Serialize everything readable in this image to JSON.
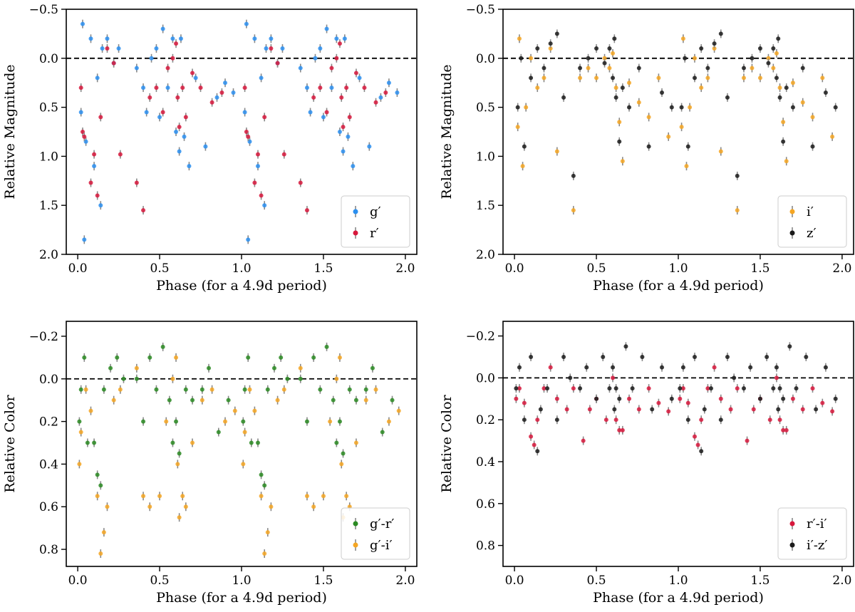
{
  "chart_data": [
    {
      "type": "scatter",
      "panel": "top-left",
      "xlabel": "Phase (for a 4.9d period)",
      "ylabel": "Relative Magnitude",
      "xlim": [
        -0.07,
        2.07
      ],
      "ylim": [
        2.0,
        -0.5
      ],
      "y_inverted": true,
      "xticks": [
        0.0,
        0.5,
        1.0,
        1.5,
        2.0
      ],
      "xtick_labels": [
        "0.0",
        "0.5",
        "1.0",
        "1.5",
        "2.0"
      ],
      "yticks": [
        -0.5,
        0.0,
        0.5,
        1.0,
        1.5,
        2.0
      ],
      "ytick_labels": [
        "−0.5",
        "0.0",
        "0.5",
        "1.0",
        "1.5",
        "2.0"
      ],
      "reference_line": 0.0,
      "legend_position": "bottom-right",
      "series": [
        {
          "name": "g′",
          "color": "#2b8ff0",
          "x": [
            0.02,
            0.03,
            0.04,
            0.05,
            0.08,
            0.1,
            0.12,
            0.14,
            0.15,
            0.18,
            0.22,
            0.25,
            0.36,
            0.4,
            0.42,
            0.45,
            0.48,
            0.5,
            0.52,
            0.55,
            0.58,
            0.6,
            0.62,
            0.63,
            0.65,
            0.68,
            0.72,
            0.78,
            0.85,
            0.9,
            0.95,
            1.02,
            1.03,
            1.04,
            1.05,
            1.08,
            1.1,
            1.12,
            1.14,
            1.15,
            1.18,
            1.22,
            1.25,
            1.36,
            1.4,
            1.42,
            1.45,
            1.48,
            1.5,
            1.52,
            1.55,
            1.58,
            1.6,
            1.62,
            1.63,
            1.65,
            1.68,
            1.72,
            1.78,
            1.85,
            1.9,
            1.95
          ],
          "y": [
            0.55,
            -0.35,
            1.85,
            0.85,
            -0.2,
            1.1,
            0.2,
            1.5,
            -0.1,
            -0.2,
            0.05,
            -0.1,
            0.1,
            0.3,
            0.55,
            0.0,
            -0.1,
            0.6,
            -0.3,
            0.3,
            -0.2,
            0.75,
            0.95,
            -0.2,
            0.8,
            1.1,
            0.2,
            0.9,
            0.4,
            0.25,
            0.35,
            0.55,
            -0.35,
            1.85,
            0.85,
            -0.2,
            1.1,
            0.2,
            1.5,
            -0.1,
            -0.2,
            0.05,
            -0.1,
            0.1,
            0.3,
            0.55,
            0.0,
            -0.1,
            0.6,
            -0.3,
            0.3,
            -0.2,
            0.75,
            0.95,
            -0.2,
            0.8,
            1.1,
            0.2,
            0.9,
            0.4,
            0.25,
            0.35
          ]
        },
        {
          "name": "r′",
          "color": "#d7183c",
          "x": [
            0.02,
            0.03,
            0.04,
            0.08,
            0.1,
            0.12,
            0.14,
            0.18,
            0.22,
            0.26,
            0.36,
            0.4,
            0.44,
            0.48,
            0.52,
            0.55,
            0.58,
            0.6,
            0.61,
            0.62,
            0.64,
            0.66,
            0.7,
            0.75,
            0.82,
            0.88,
            1.02,
            1.03,
            1.04,
            1.08,
            1.1,
            1.12,
            1.14,
            1.18,
            1.22,
            1.26,
            1.36,
            1.4,
            1.44,
            1.48,
            1.52,
            1.55,
            1.58,
            1.6,
            1.61,
            1.62,
            1.64,
            1.66,
            1.7,
            1.75,
            1.82,
            1.88
          ],
          "y": [
            0.3,
            0.75,
            0.8,
            1.27,
            0.98,
            1.4,
            0.6,
            -0.1,
            0.05,
            0.98,
            1.27,
            1.55,
            0.4,
            0.3,
            0.55,
            0.1,
            0.0,
            -0.15,
            0.4,
            0.7,
            0.3,
            0.6,
            0.15,
            0.3,
            0.45,
            0.35,
            0.3,
            0.75,
            0.8,
            1.27,
            0.98,
            1.4,
            0.6,
            -0.1,
            0.05,
            0.98,
            1.27,
            1.55,
            0.4,
            0.3,
            0.55,
            0.1,
            0.0,
            -0.15,
            0.4,
            0.7,
            0.3,
            0.6,
            0.15,
            0.3,
            0.45,
            0.35
          ]
        }
      ]
    },
    {
      "type": "scatter",
      "panel": "top-right",
      "xlabel": "Phase (for a 4.9d period)",
      "ylabel": "Relative Magnitude",
      "xlim": [
        -0.07,
        2.07
      ],
      "ylim": [
        2.0,
        -0.5
      ],
      "y_inverted": true,
      "xticks": [
        0.0,
        0.5,
        1.0,
        1.5,
        2.0
      ],
      "xtick_labels": [
        "0.0",
        "0.5",
        "1.0",
        "1.5",
        "2.0"
      ],
      "yticks": [
        -0.5,
        0.0,
        0.5,
        1.0,
        1.5,
        2.0
      ],
      "ytick_labels": [
        "−0.5",
        "0.0",
        "0.5",
        "1.0",
        "1.5",
        "2.0"
      ],
      "reference_line": 0.0,
      "legend_position": "bottom-right",
      "series": [
        {
          "name": "i′",
          "color": "#f5a623",
          "x": [
            0.02,
            0.03,
            0.05,
            0.07,
            0.1,
            0.14,
            0.18,
            0.22,
            0.26,
            0.36,
            0.4,
            0.45,
            0.5,
            0.55,
            0.58,
            0.6,
            0.62,
            0.64,
            0.66,
            0.7,
            0.76,
            0.82,
            0.88,
            0.94,
            1.02,
            1.03,
            1.05,
            1.07,
            1.1,
            1.14,
            1.18,
            1.22,
            1.26,
            1.36,
            1.4,
            1.45,
            1.5,
            1.55,
            1.58,
            1.6,
            1.62,
            1.64,
            1.66,
            1.7,
            1.76,
            1.82,
            1.88,
            1.94
          ],
          "y": [
            0.7,
            -0.2,
            1.1,
            0.5,
            0.0,
            0.3,
            0.2,
            -0.1,
            0.95,
            1.55,
            0.2,
            0.1,
            0.2,
            0.0,
            0.1,
            -0.05,
            0.3,
            0.65,
            1.05,
            0.25,
            0.45,
            0.6,
            0.2,
            0.8,
            0.7,
            -0.2,
            1.1,
            0.5,
            0.0,
            0.3,
            0.2,
            -0.1,
            0.95,
            1.55,
            0.2,
            0.1,
            0.2,
            0.0,
            0.1,
            -0.05,
            0.3,
            0.65,
            1.05,
            0.25,
            0.45,
            0.6,
            0.2,
            0.8
          ]
        },
        {
          "name": "z′",
          "color": "#1a1a1a",
          "x": [
            0.02,
            0.04,
            0.06,
            0.1,
            0.14,
            0.18,
            0.22,
            0.26,
            0.3,
            0.36,
            0.4,
            0.45,
            0.5,
            0.55,
            0.58,
            0.6,
            0.61,
            0.62,
            0.64,
            0.66,
            0.7,
            0.76,
            0.82,
            0.9,
            0.96,
            1.02,
            1.04,
            1.06,
            1.1,
            1.14,
            1.18,
            1.22,
            1.26,
            1.3,
            1.36,
            1.4,
            1.45,
            1.5,
            1.55,
            1.58,
            1.6,
            1.61,
            1.62,
            1.64,
            1.66,
            1.7,
            1.76,
            1.82,
            1.9,
            1.96
          ],
          "y": [
            0.5,
            0.0,
            0.9,
            0.2,
            -0.1,
            0.1,
            -0.15,
            -0.25,
            0.4,
            1.2,
            0.1,
            0.0,
            -0.1,
            0.05,
            -0.1,
            0.2,
            -0.2,
            0.4,
            0.85,
            0.3,
            0.5,
            0.1,
            0.9,
            0.35,
            0.5,
            0.5,
            0.0,
            0.9,
            0.2,
            -0.1,
            0.1,
            -0.15,
            -0.25,
            0.4,
            1.2,
            0.1,
            0.0,
            -0.1,
            0.05,
            -0.1,
            0.2,
            -0.2,
            0.4,
            0.85,
            0.3,
            0.5,
            0.1,
            0.9,
            0.35,
            0.5
          ]
        }
      ]
    },
    {
      "type": "scatter",
      "panel": "bottom-left",
      "xlabel": "Phase (for a 4.9d period)",
      "ylabel": "Relative Color",
      "xlim": [
        -0.07,
        2.07
      ],
      "ylim": [
        0.88,
        -0.27
      ],
      "y_inverted": true,
      "xticks": [
        0.0,
        0.5,
        1.0,
        1.5,
        2.0
      ],
      "xtick_labels": [
        "0.0",
        "0.5",
        "1.0",
        "1.5",
        "2.0"
      ],
      "yticks": [
        -0.2,
        0.0,
        0.2,
        0.4,
        0.6,
        0.8
      ],
      "ytick_labels": [
        "−0.2",
        "0.0",
        "0.2",
        "0.4",
        "0.6",
        "0.8"
      ],
      "reference_line": 0.0,
      "legend_position": "bottom-right",
      "series": [
        {
          "name": "g′-r′",
          "color": "#2a8a22",
          "x": [
            0.01,
            0.02,
            0.04,
            0.06,
            0.1,
            0.12,
            0.14,
            0.16,
            0.2,
            0.24,
            0.28,
            0.36,
            0.4,
            0.44,
            0.48,
            0.52,
            0.56,
            0.58,
            0.6,
            0.62,
            0.66,
            0.7,
            0.76,
            0.8,
            0.86,
            0.92,
            1.01,
            1.02,
            1.04,
            1.06,
            1.1,
            1.12,
            1.14,
            1.16,
            1.2,
            1.24,
            1.28,
            1.36,
            1.4,
            1.44,
            1.48,
            1.52,
            1.56,
            1.58,
            1.6,
            1.62,
            1.66,
            1.7,
            1.76,
            1.8,
            1.86,
            1.92
          ],
          "y": [
            0.2,
            0.05,
            -0.1,
            0.3,
            0.3,
            0.45,
            0.5,
            0.05,
            -0.05,
            -0.1,
            0.0,
            0.0,
            0.2,
            -0.1,
            0.05,
            -0.15,
            0.1,
            0.3,
            0.2,
            0.35,
            0.05,
            0.1,
            0.05,
            -0.05,
            0.25,
            0.1,
            0.2,
            0.05,
            -0.1,
            0.3,
            0.3,
            0.45,
            0.5,
            0.05,
            -0.05,
            -0.1,
            0.0,
            0.0,
            0.2,
            -0.1,
            0.05,
            -0.15,
            0.1,
            0.3,
            0.2,
            0.35,
            0.05,
            0.1,
            0.05,
            -0.05,
            0.25,
            0.1
          ]
        },
        {
          "name": "g′-i′",
          "color": "#f5a623",
          "x": [
            0.01,
            0.02,
            0.05,
            0.08,
            0.12,
            0.14,
            0.16,
            0.18,
            0.22,
            0.26,
            0.36,
            0.4,
            0.44,
            0.5,
            0.54,
            0.58,
            0.6,
            0.61,
            0.62,
            0.64,
            0.66,
            0.7,
            0.76,
            0.82,
            0.9,
            0.96,
            1.01,
            1.02,
            1.05,
            1.08,
            1.12,
            1.14,
            1.16,
            1.18,
            1.22,
            1.26,
            1.36,
            1.4,
            1.44,
            1.5,
            1.54,
            1.58,
            1.6,
            1.61,
            1.62,
            1.64,
            1.66,
            1.7,
            1.76,
            1.82,
            1.9,
            1.96
          ],
          "y": [
            0.4,
            0.25,
            0.05,
            0.15,
            0.55,
            0.82,
            0.72,
            0.6,
            0.1,
            0.05,
            -0.05,
            0.55,
            0.6,
            0.55,
            0.2,
            0.0,
            -0.1,
            0.4,
            0.65,
            0.55,
            0.6,
            0.3,
            0.1,
            0.05,
            0.2,
            0.15,
            0.4,
            0.25,
            0.05,
            0.15,
            0.55,
            0.82,
            0.72,
            0.6,
            0.1,
            0.05,
            -0.05,
            0.55,
            0.6,
            0.55,
            0.2,
            0.0,
            -0.1,
            0.4,
            0.65,
            0.55,
            0.6,
            0.3,
            0.1,
            0.05,
            0.2,
            0.15
          ]
        }
      ]
    },
    {
      "type": "scatter",
      "panel": "bottom-right",
      "xlabel": "Phase (for a 4.9d period)",
      "ylabel": "Relative Color",
      "xlim": [
        -0.07,
        2.07
      ],
      "ylim": [
        0.9,
        -0.27
      ],
      "y_inverted": true,
      "xticks": [
        0.0,
        0.5,
        1.0,
        1.5,
        2.0
      ],
      "xtick_labels": [
        "0.0",
        "0.5",
        "1.0",
        "1.5",
        "2.0"
      ],
      "yticks": [
        -0.2,
        0.0,
        0.2,
        0.4,
        0.6,
        0.8
      ],
      "ytick_labels": [
        "−0.2",
        "0.0",
        "0.2",
        "0.4",
        "0.6",
        "0.8"
      ],
      "reference_line": 0.0,
      "legend_position": "bottom-right",
      "series": [
        {
          "name": "r′-i′",
          "color": "#d7183c",
          "x": [
            0.01,
            0.03,
            0.06,
            0.1,
            0.12,
            0.14,
            0.18,
            0.22,
            0.26,
            0.32,
            0.36,
            0.42,
            0.46,
            0.5,
            0.56,
            0.6,
            0.62,
            0.64,
            0.66,
            0.7,
            0.76,
            0.82,
            0.88,
            0.94,
            1.01,
            1.03,
            1.06,
            1.1,
            1.12,
            1.14,
            1.18,
            1.22,
            1.26,
            1.32,
            1.36,
            1.42,
            1.46,
            1.5,
            1.56,
            1.6,
            1.62,
            1.64,
            1.66,
            1.7,
            1.76,
            1.82,
            1.88,
            1.94
          ],
          "y": [
            0.1,
            0.05,
            0.12,
            0.28,
            0.32,
            0.2,
            0.05,
            -0.05,
            0.1,
            0.15,
            0.05,
            0.3,
            0.15,
            0.1,
            0.2,
            0.0,
            0.2,
            0.25,
            0.25,
            0.1,
            0.15,
            0.05,
            0.12,
            0.16,
            0.1,
            0.05,
            0.12,
            0.28,
            0.32,
            0.2,
            0.05,
            -0.05,
            0.1,
            0.15,
            0.05,
            0.3,
            0.15,
            0.1,
            0.2,
            0.0,
            0.2,
            0.25,
            0.25,
            0.1,
            0.15,
            0.05,
            0.12,
            0.16
          ]
        },
        {
          "name": "i′-z′",
          "color": "#1a1a1a",
          "x": [
            0.01,
            0.03,
            0.06,
            0.1,
            0.14,
            0.16,
            0.2,
            0.26,
            0.3,
            0.34,
            0.4,
            0.44,
            0.5,
            0.54,
            0.58,
            0.6,
            0.61,
            0.62,
            0.64,
            0.68,
            0.72,
            0.78,
            0.84,
            0.9,
            0.96,
            1.01,
            1.03,
            1.06,
            1.1,
            1.14,
            1.16,
            1.2,
            1.26,
            1.3,
            1.34,
            1.4,
            1.44,
            1.5,
            1.54,
            1.58,
            1.6,
            1.61,
            1.62,
            1.64,
            1.68,
            1.72,
            1.78,
            1.84,
            1.9,
            1.96
          ],
          "y": [
            0.05,
            -0.05,
            0.2,
            -0.1,
            0.35,
            0.15,
            0.05,
            0.2,
            -0.1,
            0.0,
            0.05,
            -0.05,
            0.1,
            -0.1,
            0.05,
            -0.05,
            0.15,
            0.05,
            0.1,
            -0.15,
            0.05,
            -0.1,
            0.15,
            -0.05,
            0.1,
            0.05,
            -0.05,
            0.2,
            -0.1,
            0.35,
            0.15,
            0.05,
            0.2,
            -0.1,
            0.0,
            0.05,
            -0.05,
            0.1,
            -0.1,
            0.05,
            -0.05,
            0.15,
            0.05,
            0.1,
            -0.15,
            0.05,
            -0.1,
            0.15,
            -0.05,
            0.1
          ]
        }
      ]
    }
  ]
}
